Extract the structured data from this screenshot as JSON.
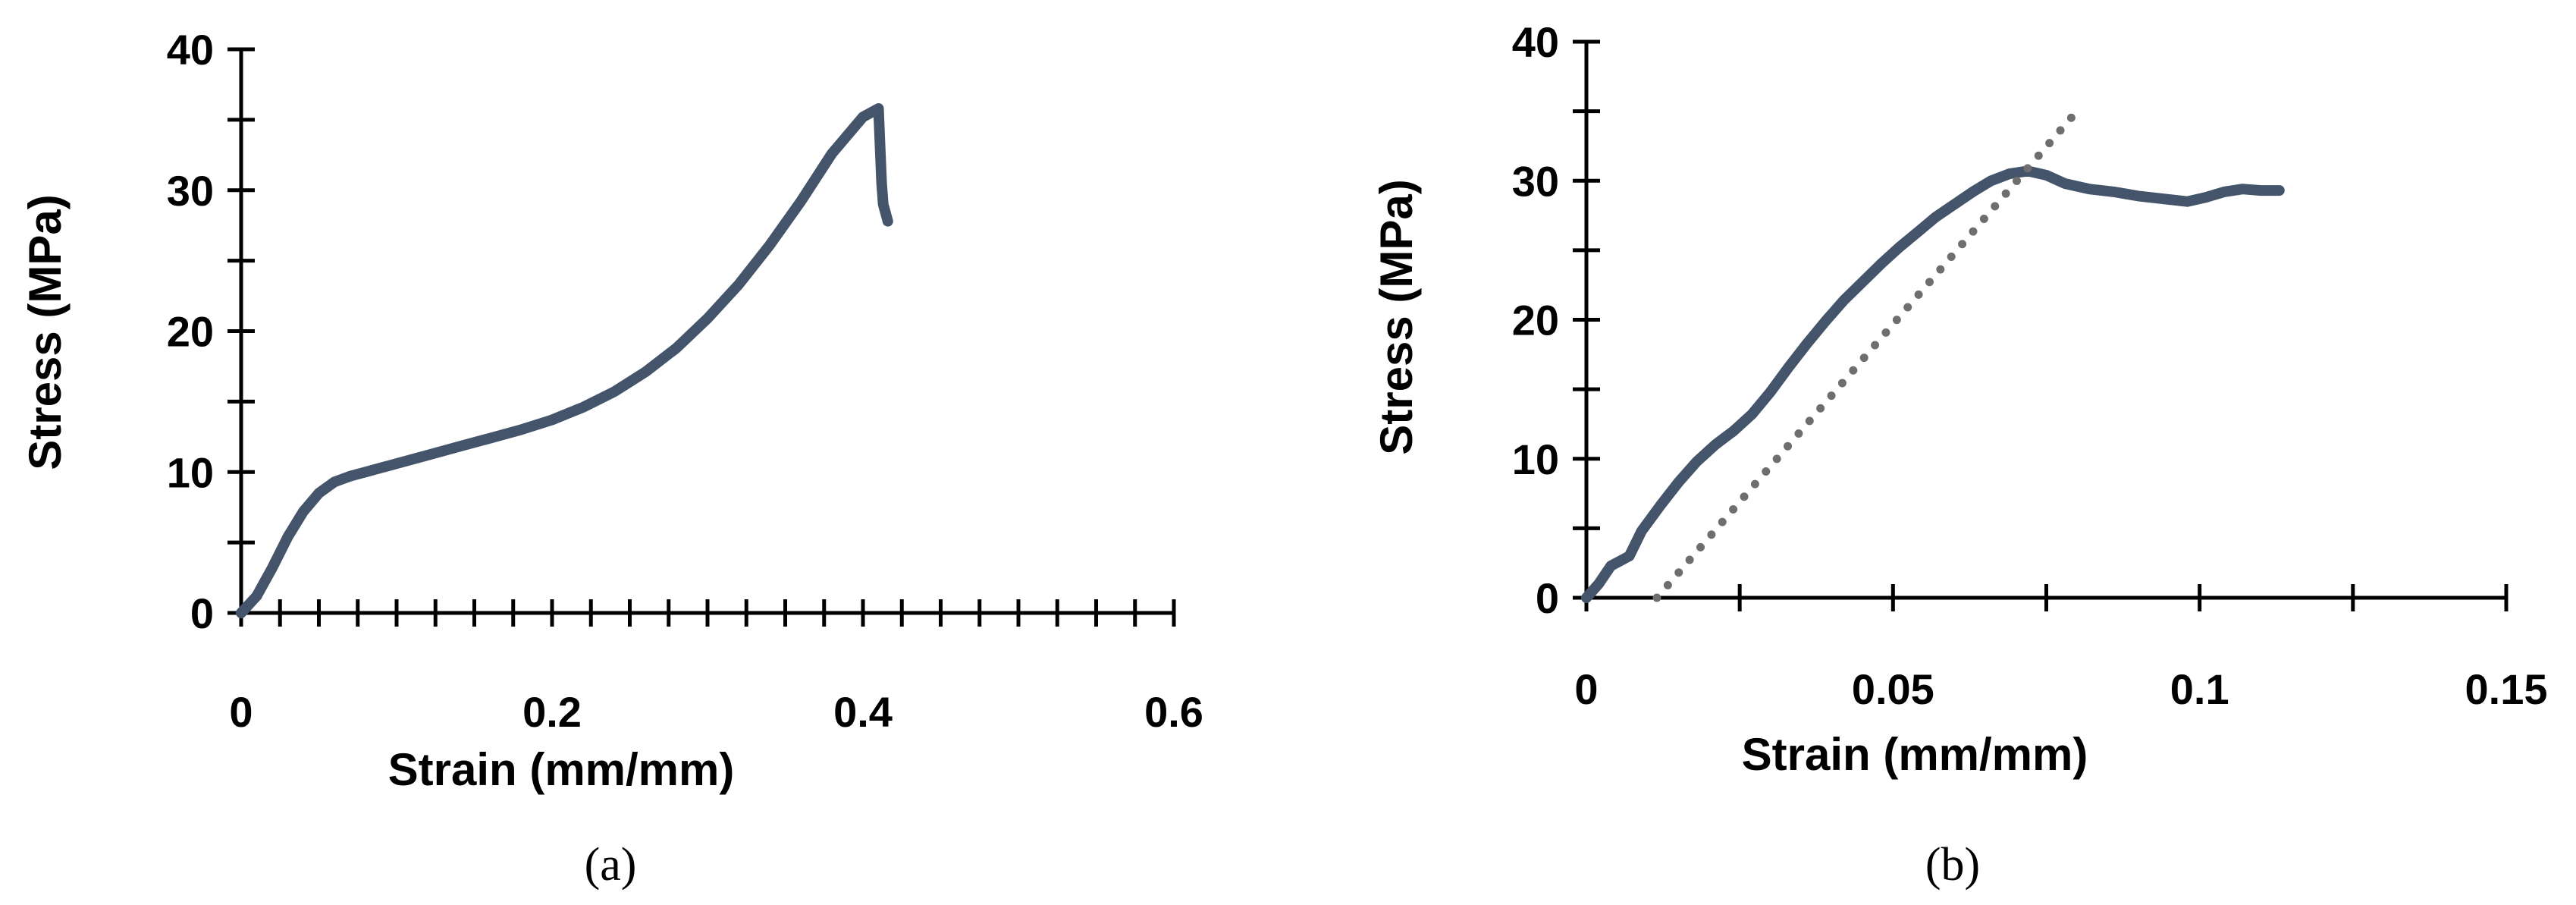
{
  "chart_data": [
    {
      "panel_label": "(a)",
      "type": "line",
      "xlabel": "Strain (mm/mm)",
      "ylabel": "Stress (MPa)",
      "xlim": [
        0,
        0.6
      ],
      "ylim": [
        0,
        40
      ],
      "xticks": [
        0,
        0.2,
        0.4,
        0.6
      ],
      "xtick_labels": [
        "0",
        "0.2",
        "0.4",
        "0.6"
      ],
      "yticks": [
        0,
        10,
        20,
        30,
        40
      ],
      "ytick_labels": [
        "0",
        "10",
        "20",
        "30",
        "40"
      ],
      "x_minor_step": 0.025,
      "y_minor_step": 5,
      "series": [
        {
          "name": "stress-strain",
          "color": "#44546A",
          "style": "solid",
          "x": [
            0,
            0.01,
            0.02,
            0.03,
            0.04,
            0.05,
            0.06,
            0.07,
            0.08,
            0.1,
            0.12,
            0.14,
            0.16,
            0.18,
            0.2,
            0.22,
            0.24,
            0.26,
            0.28,
            0.3,
            0.32,
            0.34,
            0.36,
            0.38,
            0.4,
            0.41,
            0.411,
            0.412,
            0.413,
            0.416
          ],
          "y": [
            0,
            1.2,
            3.2,
            5.4,
            7.2,
            8.5,
            9.3,
            9.7,
            10.0,
            10.6,
            11.2,
            11.8,
            12.4,
            13.0,
            13.7,
            14.6,
            15.7,
            17.1,
            18.8,
            20.9,
            23.3,
            26.1,
            29.2,
            32.6,
            35.2,
            35.8,
            33.2,
            30.5,
            29.0,
            27.8
          ]
        }
      ]
    },
    {
      "panel_label": "(b)",
      "type": "line",
      "xlabel": "Strain (mm/mm)",
      "ylabel": "Stress (MPa)",
      "xlim": [
        0,
        0.15
      ],
      "ylim": [
        0,
        40
      ],
      "xticks": [
        0,
        0.05,
        0.1,
        0.15
      ],
      "xtick_labels": [
        "0",
        "0.05",
        "0.1",
        "0.15"
      ],
      "yticks": [
        0,
        10,
        20,
        30,
        40
      ],
      "ytick_labels": [
        "0",
        "10",
        "20",
        "30",
        "40"
      ],
      "x_minor_step": 0.025,
      "y_minor_step": 5,
      "series": [
        {
          "name": "stress-strain",
          "color": "#44546A",
          "style": "solid",
          "x": [
            0,
            0.002,
            0.004,
            0.007,
            0.009,
            0.012,
            0.015,
            0.018,
            0.021,
            0.024,
            0.027,
            0.03,
            0.033,
            0.036,
            0.039,
            0.042,
            0.045,
            0.048,
            0.051,
            0.054,
            0.057,
            0.06,
            0.063,
            0.066,
            0.069,
            0.072,
            0.075,
            0.078,
            0.082,
            0.086,
            0.09,
            0.094,
            0.098,
            0.101,
            0.104,
            0.107,
            0.11,
            0.113
          ],
          "y": [
            0,
            1.0,
            2.3,
            3.0,
            4.8,
            6.6,
            8.3,
            9.8,
            11.0,
            12.0,
            13.2,
            14.8,
            16.6,
            18.3,
            19.9,
            21.4,
            22.7,
            24.0,
            25.2,
            26.3,
            27.4,
            28.3,
            29.2,
            30.0,
            30.5,
            30.7,
            30.4,
            29.8,
            29.4,
            29.2,
            28.9,
            28.7,
            28.5,
            28.8,
            29.2,
            29.4,
            29.3,
            29.3
          ]
        },
        {
          "name": "linear-fit",
          "color": "#6E6E6E",
          "style": "dotted",
          "x": [
            0.0115,
            0.08
          ],
          "y": [
            0,
            35
          ]
        }
      ]
    }
  ]
}
